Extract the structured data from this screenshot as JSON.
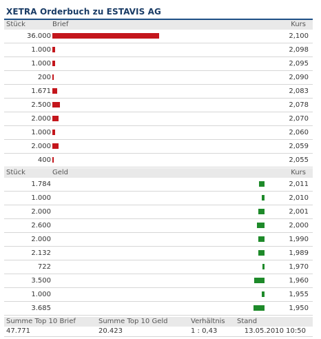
{
  "title": "XETRA Orderbuch zu ESTAVIS AG",
  "ask_header": {
    "qty": "Stück",
    "side": "Brief",
    "price": "Kurs"
  },
  "bid_header": {
    "qty": "Stück",
    "side": "Geld",
    "price": "Kurs"
  },
  "colors": {
    "ask_bar": "#c4161c",
    "bid_bar": "#1e8a2a",
    "title": "#1a3c66",
    "rule": "#1d4f86"
  },
  "ask_rows": [
    {
      "qty": "36.000",
      "price": "2,100",
      "volume": 36000
    },
    {
      "qty": "1.000",
      "price": "2,098",
      "volume": 1000
    },
    {
      "qty": "1.000",
      "price": "2,095",
      "volume": 1000
    },
    {
      "qty": "200",
      "price": "2,090",
      "volume": 200
    },
    {
      "qty": "1.671",
      "price": "2,083",
      "volume": 1671
    },
    {
      "qty": "2.500",
      "price": "2,078",
      "volume": 2500
    },
    {
      "qty": "2.000",
      "price": "2,070",
      "volume": 2000
    },
    {
      "qty": "1.000",
      "price": "2,060",
      "volume": 1000
    },
    {
      "qty": "2.000",
      "price": "2,059",
      "volume": 2000
    },
    {
      "qty": "400",
      "price": "2,055",
      "volume": 400
    }
  ],
  "bid_rows": [
    {
      "qty": "1.784",
      "price": "2,011",
      "volume": 1784
    },
    {
      "qty": "1.000",
      "price": "2,010",
      "volume": 1000
    },
    {
      "qty": "2.000",
      "price": "2,001",
      "volume": 2000
    },
    {
      "qty": "2.600",
      "price": "2,000",
      "volume": 2600
    },
    {
      "qty": "2.000",
      "price": "1,990",
      "volume": 2000
    },
    {
      "qty": "2.132",
      "price": "1,989",
      "volume": 2132
    },
    {
      "qty": "722",
      "price": "1,970",
      "volume": 722
    },
    {
      "qty": "3.500",
      "price": "1,960",
      "volume": 3500
    },
    {
      "qty": "1.000",
      "price": "1,955",
      "volume": 1000
    },
    {
      "qty": "3.685",
      "price": "1,950",
      "volume": 3685
    }
  ],
  "summary": {
    "labels": {
      "brief": "Summe Top 10 Brief",
      "geld": "Summe Top 10 Geld",
      "ratio": "Verhältnis",
      "stand": "Stand"
    },
    "values": {
      "brief": "47.771",
      "geld": "20.423",
      "ratio": "1 : 0,43",
      "stand": "13.05.2010 10:50"
    }
  }
}
